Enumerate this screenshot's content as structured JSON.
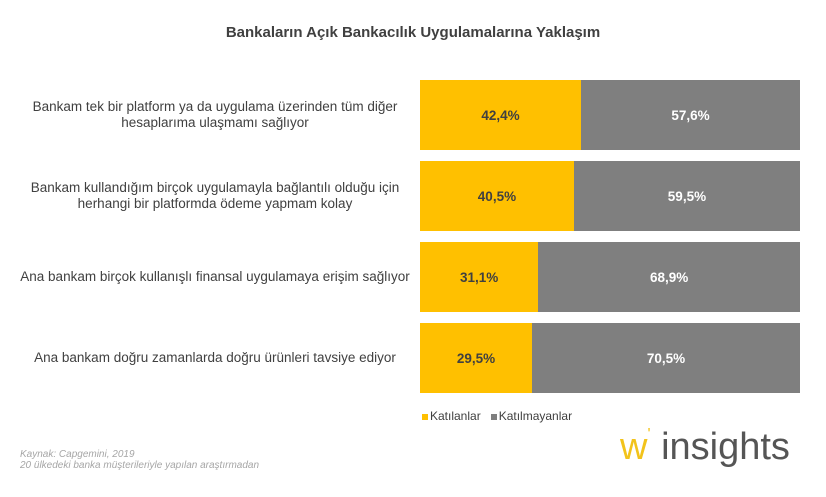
{
  "chart_data": {
    "type": "bar",
    "stacked": true,
    "orientation": "horizontal",
    "title": "Bankaların Açık Bankacılık Uygulamalarına Yaklaşım",
    "categories": [
      "Bankam tek bir platform ya da uygulama üzerinden tüm diğer hesaplarıma ulaşmamı sağlıyor",
      "Bankam kullandığım birçok uygulamayla bağlantılı olduğu için herhangi bir platformda ödeme yapmam kolay",
      "Ana bankam birçok kullanışlı finansal uygulamaya erişim sağlıyor",
      "Ana bankam doğru zamanlarda doğru ürünleri tavsiye ediyor"
    ],
    "series": [
      {
        "name": "Katılanlar",
        "color": "#FFC000",
        "values": [
          42.4,
          40.5,
          31.1,
          29.5
        ],
        "labels": [
          "42,4%",
          "40,5%",
          "31,1%",
          "29,5%"
        ]
      },
      {
        "name": "Katılmayanlar",
        "color": "#7F7F7F",
        "values": [
          57.6,
          59.5,
          68.9,
          70.5
        ],
        "labels": [
          "57,6%",
          "59,5%",
          "68,9%",
          "70,5%"
        ]
      }
    ],
    "xlim": [
      0,
      100
    ],
    "legend": "bottom"
  },
  "source": [
    "Kaynak: Capgemini, 2019",
    "20 ülkedeki banka müşterileriyle yapılan araştırmadan"
  ],
  "logo": {
    "mark": "w",
    "text": "insights"
  }
}
